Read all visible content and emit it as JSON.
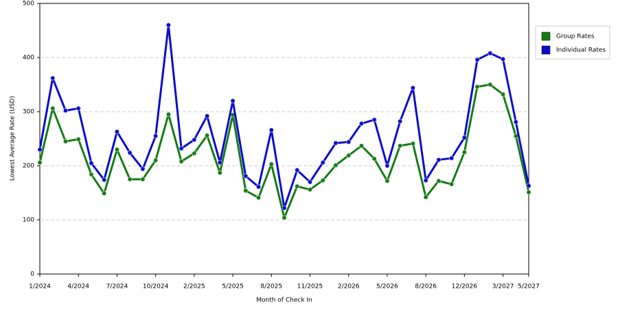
{
  "chart_data": {
    "type": "line",
    "x_label": "Month of Check In",
    "y_label": "Lowest Average Rate (USD)",
    "categories": [
      "1/2024",
      null,
      null,
      "4/2024",
      null,
      null,
      "7/2024",
      null,
      null,
      "10/2024",
      null,
      null,
      "2/2025",
      null,
      null,
      "5/2025",
      null,
      null,
      "8/2025",
      null,
      null,
      "11/2025",
      null,
      null,
      "2/2026",
      null,
      null,
      "5/2026",
      null,
      null,
      "8/2026",
      null,
      null,
      "12/2026",
      null,
      null,
      "3/2027",
      null,
      "5/2027"
    ],
    "series": [
      {
        "name": "Group Rates",
        "color": "#167c16",
        "values": [
          206,
          306,
          245,
          249,
          184,
          149,
          230,
          175,
          175,
          210,
          295,
          208,
          223,
          256,
          187,
          294,
          154,
          141,
          203,
          104,
          162,
          156,
          173,
          201,
          219,
          237,
          213,
          172,
          237,
          241,
          142,
          172,
          166,
          225,
          346,
          350,
          332,
          255,
          151
        ]
      },
      {
        "name": "Individual Rates",
        "color": "#0c0ccc",
        "values": [
          230,
          362,
          302,
          306,
          205,
          174,
          263,
          224,
          194,
          255,
          460,
          232,
          248,
          292,
          206,
          320,
          181,
          161,
          266,
          122,
          192,
          170,
          206,
          242,
          244,
          278,
          285,
          200,
          282,
          344,
          173,
          211,
          214,
          252,
          396,
          408,
          397,
          281,
          163
        ]
      }
    ],
    "ylim": [
      0,
      500
    ],
    "yticks": [
      0,
      100,
      200,
      300,
      400,
      500
    ],
    "grid": true
  }
}
